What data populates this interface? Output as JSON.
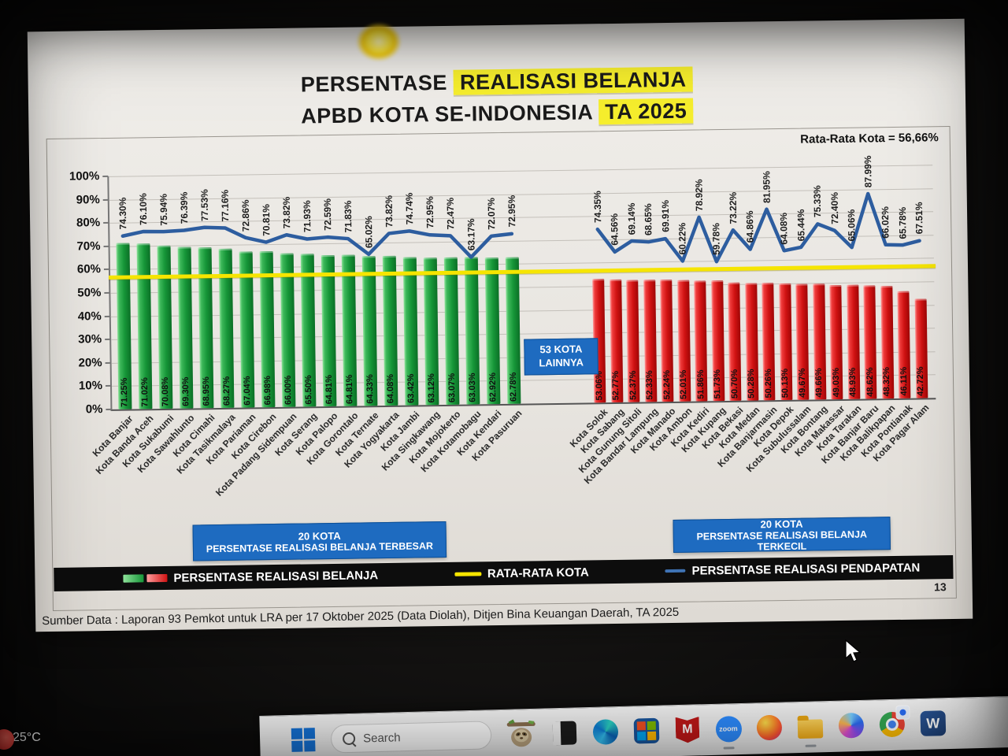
{
  "slide": {
    "title": {
      "l1a": "PERSENTASE ",
      "l1b": "REALISASI BELANJA",
      "l2a": "APBD KOTA SE-INDONESIA ",
      "l2b": "TA 2025"
    },
    "average_label": "Rata-Rata Kota = 56,66%",
    "middle_box": {
      "line1": "53 KOTA",
      "line2": "LAINNYA"
    },
    "box_terbesar": {
      "line1": "20 KOTA",
      "line2": "PERSENTASE REALISASI BELANJA TERBESAR"
    },
    "box_terkecil": {
      "line1": "20 KOTA",
      "line2": "PERSENTASE REALISASI BELANJA TERKECIL"
    },
    "legend": {
      "belanja": "PERSENTASE REALISASI BELANJA",
      "rata_rata": "RATA-RATA KOTA",
      "pendapatan": "PERSENTASE REALISASI PENDAPATAN"
    },
    "source": "Sumber Data : Laporan 93 Pemkot untuk LRA per 17 Oktober 2025 (Data Diolah), Ditjen Bina Keuangan Daerah, TA 2025",
    "page_number": "13",
    "colors": {
      "highlight": "#f6ee2d",
      "info_box_blue": "#1e6bc0",
      "legend_bar_black": "#0d0d0d"
    }
  },
  "chart_data": {
    "type": "bar",
    "title": "PERSENTASE REALISASI BELANJA APBD KOTA SE-INDONESIA TA 2025",
    "ylabel": "",
    "xlabel": "",
    "ylim": [
      0,
      100
    ],
    "ytick_step": 10,
    "grid": true,
    "average_line_value": 56.66,
    "average_line_label": "Rata-Rata Kota = 56,66%",
    "legend_position": "bottom",
    "series_names": [
      "PERSENTASE REALISASI BELANJA",
      "RATA-RATA KOTA",
      "PERSENTASE REALISASI PENDAPATAN"
    ],
    "colors": {
      "bar_terbesar": "#169638",
      "bar_terkecil": "#d01212",
      "average_line": "#f6e500",
      "pendapatan_line": "#2d5d9f"
    },
    "groups": [
      {
        "name": "20 KOTA PERSENTASE REALISASI BELANJA TERBESAR",
        "bar_color": "#169638",
        "cities": [
          "Kota Banjar",
          "Kota Banda Aceh",
          "Kota Sukabumi",
          "Kota Sawahlunto",
          "Kota Cimahi",
          "Kota Tasikmalaya",
          "Kota Pariaman",
          "Kota Cirebon",
          "Kota Padang Sidempuan",
          "Kota Serang",
          "Kota Palopo",
          "Kota Gorontalo",
          "Kota Ternate",
          "Kota Yogyakarta",
          "Kota Jambi",
          "Kota Singkawang",
          "Kota Mojokerto",
          "Kota Kotamobagu",
          "Kota Kendari",
          "Kota Pasuruan"
        ],
        "belanja": [
          71.25,
          71.02,
          70.08,
          69.3,
          68.95,
          68.27,
          67.04,
          66.98,
          66.0,
          65.5,
          64.81,
          64.81,
          64.33,
          64.08,
          63.42,
          63.12,
          63.07,
          63.03,
          62.92,
          62.78
        ],
        "pendapatan": [
          74.3,
          76.1,
          75.94,
          76.39,
          77.53,
          77.16,
          72.86,
          70.81,
          73.82,
          71.93,
          72.59,
          71.83,
          65.02,
          73.82,
          74.74,
          72.95,
          72.47,
          63.17,
          72.07,
          72.95
        ]
      },
      {
        "name": "20 KOTA PERSENTASE REALISASI BELANJA TERKECIL",
        "bar_color": "#d01212",
        "cities": [
          "Kota Solok",
          "Kota Sabang",
          "Kota Gunung Sitoli",
          "Kota Bandar Lampung",
          "Kota Manado",
          "Kota Ambon",
          "Kota Kediri",
          "Kota Kupang",
          "Kota Bekasi",
          "Kota Medan",
          "Kota Banjarmasin",
          "Kota Depok",
          "Kota Subulussalam",
          "Kota Bontang",
          "Kota Makassar",
          "Kota Tarakan",
          "Kota Banjar Baru",
          "Kota Balikpapan",
          "Kota Pontianak",
          "Kota Pagar Alam"
        ],
        "belanja": [
          53.06,
          52.77,
          52.37,
          52.33,
          52.24,
          52.01,
          51.86,
          51.73,
          50.7,
          50.28,
          50.26,
          50.13,
          49.67,
          49.66,
          49.03,
          48.93,
          48.62,
          48.32,
          46.11,
          42.72
        ],
        "pendapatan": [
          74.35,
          64.56,
          69.14,
          68.65,
          69.91,
          60.22,
          78.92,
          59.78,
          73.22,
          64.86,
          81.95,
          64.08,
          65.44,
          75.33,
          72.4,
          65.06,
          87.99,
          66.02,
          65.78,
          67.51
        ]
      }
    ],
    "middle_annotation": "53 KOTA LAINNYA"
  },
  "taskbar": {
    "search_placeholder": "Search",
    "icons": [
      "start-icon",
      "search-input",
      "sloth-icon",
      "dark-window-icon",
      "edge-icon",
      "microsoft-365-icon",
      "mcafee-icon",
      "zoom-icon",
      "firefox-icon",
      "file-explorer-icon",
      "copilot-icon",
      "chrome-icon",
      "word-icon"
    ],
    "zoom_label": "zoom",
    "word_label": "W"
  },
  "weather": {
    "temperature": "25°C"
  }
}
